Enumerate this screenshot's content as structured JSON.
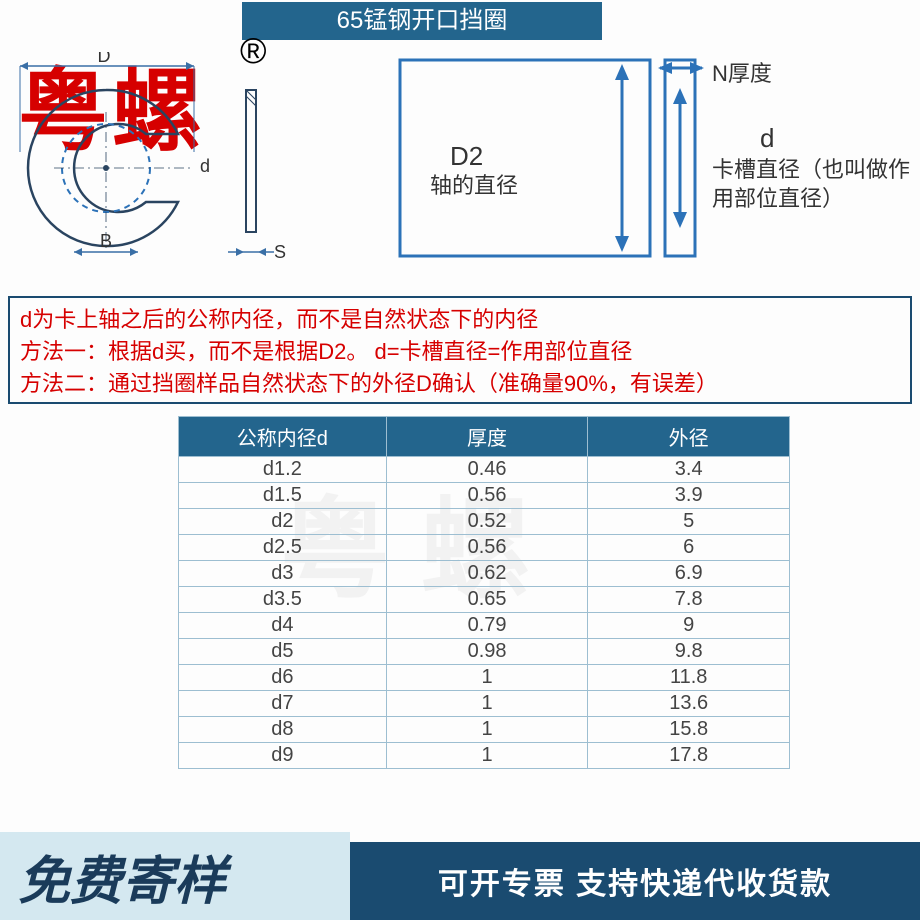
{
  "title": "65锰钢开口挡圈",
  "brand": "粤螺",
  "reg_mark": "®",
  "colors": {
    "header_bg": "#23658d",
    "brand": "#d60000",
    "instr_border": "#1a4b70",
    "instr_text": "#d60000",
    "banner_left_bg": "#d4e8f0",
    "banner_left_text": "#1a3b5a",
    "banner_right_bg": "#1a4b70",
    "diagram_blue": "#2c72b8",
    "table_border": "#9dbed1"
  },
  "diagram": {
    "left": {
      "D": "D",
      "d": "d",
      "B": "B",
      "S": "S"
    },
    "right": {
      "N_label": "N厚度",
      "D2": "D2",
      "D2_sub": "轴的直径",
      "d": "d",
      "d_desc": "卡槽直径（也叫做作用部位直径）"
    }
  },
  "instructions": {
    "line1": "d为卡上轴之后的公称内径，而不是自然状态下的内径",
    "line2": "方法一：根据d买，而不是根据D2。 d=卡槽直径=作用部位直径",
    "line3": "方法二：通过挡圈样品自然状态下的外径D确认（准确量90%，有误差）"
  },
  "table": {
    "columns": [
      "公称内径d",
      "厚度",
      "外径"
    ],
    "rows": [
      [
        "d1.2",
        "0.46",
        "3.4"
      ],
      [
        "d1.5",
        "0.56",
        "3.9"
      ],
      [
        "d2",
        "0.52",
        "5"
      ],
      [
        "d2.5",
        "0.56",
        "6"
      ],
      [
        "d3",
        "0.62",
        "6.9"
      ],
      [
        "d3.5",
        "0.65",
        "7.8"
      ],
      [
        "d4",
        "0.79",
        "9"
      ],
      [
        "d5",
        "0.98",
        "9.8"
      ],
      [
        "d6",
        "1",
        "11.8"
      ],
      [
        "d7",
        "1",
        "13.6"
      ],
      [
        "d8",
        "1",
        "15.8"
      ],
      [
        "d9",
        "1",
        "17.8"
      ]
    ]
  },
  "banner": {
    "left": "免费寄样",
    "right": "可开专票 支持快递代收货款"
  },
  "watermark": "粤 螺"
}
